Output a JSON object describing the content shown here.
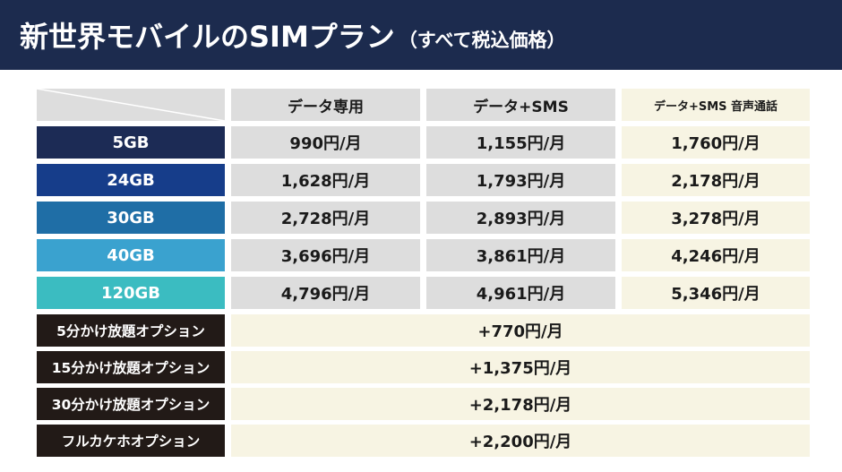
{
  "title": {
    "main": "新世界モバイルのSIMプラン",
    "sub": "（すべて税込価格）"
  },
  "colors": {
    "header_bg": "#1c2b4e",
    "plan_row_colors": [
      "#1c2b55",
      "#163d8a",
      "#1f6ea6",
      "#3aa2cf",
      "#3bbcc1"
    ],
    "option_bg": "#221a17"
  },
  "columns": [
    "データ専用",
    "データ+SMS",
    "データ+SMS 音声通話"
  ],
  "plans": [
    {
      "name": "5GB",
      "prices": [
        "990円/月",
        "1,155円/月",
        "1,760円/月"
      ]
    },
    {
      "name": "24GB",
      "prices": [
        "1,628円/月",
        "1,793円/月",
        "2,178円/月"
      ]
    },
    {
      "name": "30GB",
      "prices": [
        "2,728円/月",
        "2,893円/月",
        "3,278円/月"
      ]
    },
    {
      "name": "40GB",
      "prices": [
        "3,696円/月",
        "3,861円/月",
        "4,246円/月"
      ]
    },
    {
      "name": "120GB",
      "prices": [
        "4,796円/月",
        "4,961円/月",
        "5,346円/月"
      ]
    }
  ],
  "options": [
    {
      "name": "5分かけ放題オプション",
      "price": "+770円/月"
    },
    {
      "name": "15分かけ放題オプション",
      "price": "+1,375円/月"
    },
    {
      "name": "30分かけ放題オプション",
      "price": "+2,178円/月"
    },
    {
      "name": "フルカケホオプション",
      "price": "+2,200円/月"
    }
  ]
}
